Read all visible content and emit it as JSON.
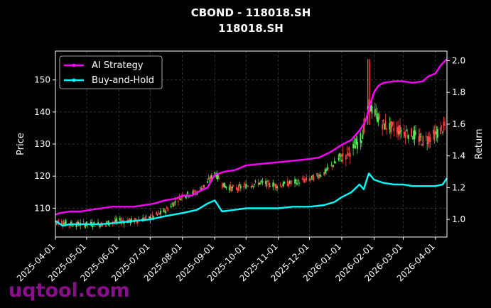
{
  "chart_data": {
    "type": "line",
    "title": "CBOND - 118018.SH",
    "subtitle": "118018.SH",
    "ylabel": "Price",
    "y2label": "Return",
    "x_ticks": [
      "2025-04-01",
      "2025-05-01",
      "2025-06-01",
      "2025-07-01",
      "2025-08-01",
      "2025-09-01",
      "2025-10-01",
      "2025-11-01",
      "2025-12-01",
      "2026-01-01",
      "2026-02-01",
      "2026-03-01",
      "2026-04-01"
    ],
    "x_range": [
      "2025-04-01",
      "2026-04-12"
    ],
    "ylim": [
      101,
      159
    ],
    "y_ticks": [
      110,
      120,
      130,
      140,
      150
    ],
    "y2lim": [
      0.889,
      2.06
    ],
    "y2_ticks": [
      "1.0",
      "1.2",
      "1.4",
      "1.6",
      "1.8",
      "2.0"
    ],
    "grid": true,
    "legend_position": "top-left",
    "series": [
      {
        "name": "AI Strategy",
        "color": "#ff00ff",
        "axis": "return",
        "points": [
          [
            "2025-04-01",
            1.03
          ],
          [
            "2025-04-05",
            1.04
          ],
          [
            "2025-04-15",
            1.05
          ],
          [
            "2025-04-25",
            1.05
          ],
          [
            "2025-05-05",
            1.06
          ],
          [
            "2025-05-15",
            1.07
          ],
          [
            "2025-05-25",
            1.08
          ],
          [
            "2025-06-05",
            1.08
          ],
          [
            "2025-06-15",
            1.08
          ],
          [
            "2025-06-25",
            1.09
          ],
          [
            "2025-07-05",
            1.1
          ],
          [
            "2025-07-15",
            1.12
          ],
          [
            "2025-07-25",
            1.13
          ],
          [
            "2025-08-01",
            1.15
          ],
          [
            "2025-08-10",
            1.15
          ],
          [
            "2025-08-18",
            1.18
          ],
          [
            "2025-08-25",
            1.2
          ],
          [
            "2025-09-01",
            1.28
          ],
          [
            "2025-09-10",
            1.3
          ],
          [
            "2025-09-20",
            1.31
          ],
          [
            "2025-10-01",
            1.34
          ],
          [
            "2025-10-15",
            1.35
          ],
          [
            "2025-11-01",
            1.36
          ],
          [
            "2025-11-15",
            1.37
          ],
          [
            "2025-12-01",
            1.38
          ],
          [
            "2025-12-10",
            1.39
          ],
          [
            "2025-12-20",
            1.42
          ],
          [
            "2026-01-01",
            1.47
          ],
          [
            "2026-01-10",
            1.5
          ],
          [
            "2026-01-18",
            1.56
          ],
          [
            "2026-01-24",
            1.62
          ],
          [
            "2026-01-28",
            1.72
          ],
          [
            "2026-02-01",
            1.8
          ],
          [
            "2026-02-05",
            1.84
          ],
          [
            "2026-02-10",
            1.86
          ],
          [
            "2026-02-20",
            1.87
          ],
          [
            "2026-03-01",
            1.87
          ],
          [
            "2026-03-10",
            1.86
          ],
          [
            "2026-03-20",
            1.87
          ],
          [
            "2026-03-25",
            1.9
          ],
          [
            "2026-04-01",
            1.92
          ],
          [
            "2026-04-06",
            1.97
          ],
          [
            "2026-04-12",
            2.01
          ]
        ]
      },
      {
        "name": "Buy-and-Hold",
        "color": "#00ffff",
        "axis": "return",
        "points": [
          [
            "2025-04-01",
            0.99
          ],
          [
            "2025-04-08",
            0.96
          ],
          [
            "2025-04-15",
            0.97
          ],
          [
            "2025-05-01",
            0.97
          ],
          [
            "2025-05-15",
            0.97
          ],
          [
            "2025-06-01",
            0.98
          ],
          [
            "2025-06-15",
            0.99
          ],
          [
            "2025-07-01",
            1.0
          ],
          [
            "2025-07-15",
            1.02
          ],
          [
            "2025-08-01",
            1.04
          ],
          [
            "2025-08-15",
            1.06
          ],
          [
            "2025-08-25",
            1.1
          ],
          [
            "2025-09-01",
            1.12
          ],
          [
            "2025-09-08",
            1.05
          ],
          [
            "2025-09-20",
            1.06
          ],
          [
            "2025-10-01",
            1.07
          ],
          [
            "2025-10-15",
            1.07
          ],
          [
            "2025-11-01",
            1.07
          ],
          [
            "2025-11-15",
            1.08
          ],
          [
            "2025-12-01",
            1.08
          ],
          [
            "2025-12-15",
            1.09
          ],
          [
            "2025-12-25",
            1.11
          ],
          [
            "2026-01-01",
            1.14
          ],
          [
            "2026-01-10",
            1.17
          ],
          [
            "2026-01-18",
            1.22
          ],
          [
            "2026-01-22",
            1.19
          ],
          [
            "2026-01-27",
            1.29
          ],
          [
            "2026-02-01",
            1.25
          ],
          [
            "2026-02-10",
            1.23
          ],
          [
            "2026-02-20",
            1.22
          ],
          [
            "2026-03-01",
            1.22
          ],
          [
            "2026-03-10",
            1.21
          ],
          [
            "2026-03-20",
            1.21
          ],
          [
            "2026-04-01",
            1.21
          ],
          [
            "2026-04-08",
            1.22
          ],
          [
            "2026-04-12",
            1.26
          ]
        ]
      },
      {
        "name": "Price",
        "type": "candlestick",
        "axis": "price",
        "up_color": "#55ee55",
        "down_color": "#ff4444",
        "points": [
          [
            "2025-04-01",
            106
          ],
          [
            "2025-04-15",
            105
          ],
          [
            "2025-05-01",
            105
          ],
          [
            "2025-05-15",
            105
          ],
          [
            "2025-06-01",
            106
          ],
          [
            "2025-06-15",
            106
          ],
          [
            "2025-07-01",
            107
          ],
          [
            "2025-07-15",
            109
          ],
          [
            "2025-08-01",
            114
          ],
          [
            "2025-08-15",
            115
          ],
          [
            "2025-08-25",
            118
          ],
          [
            "2025-09-01",
            121
          ],
          [
            "2025-09-10",
            117
          ],
          [
            "2025-09-20",
            116
          ],
          [
            "2025-10-01",
            117
          ],
          [
            "2025-10-15",
            118
          ],
          [
            "2025-11-01",
            117
          ],
          [
            "2025-11-15",
            118
          ],
          [
            "2025-12-01",
            119
          ],
          [
            "2025-12-15",
            121
          ],
          [
            "2026-01-01",
            126
          ],
          [
            "2026-01-10",
            128
          ],
          [
            "2026-01-20",
            132
          ],
          [
            "2026-01-27",
            142
          ],
          [
            "2026-02-01",
            140
          ],
          [
            "2026-02-10",
            136
          ],
          [
            "2026-02-20",
            135
          ],
          [
            "2026-03-01",
            134
          ],
          [
            "2026-03-10",
            133
          ],
          [
            "2026-03-20",
            131
          ],
          [
            "2026-04-01",
            133
          ],
          [
            "2026-04-12",
            136
          ]
        ]
      }
    ]
  },
  "watermark": "uqtool.com"
}
